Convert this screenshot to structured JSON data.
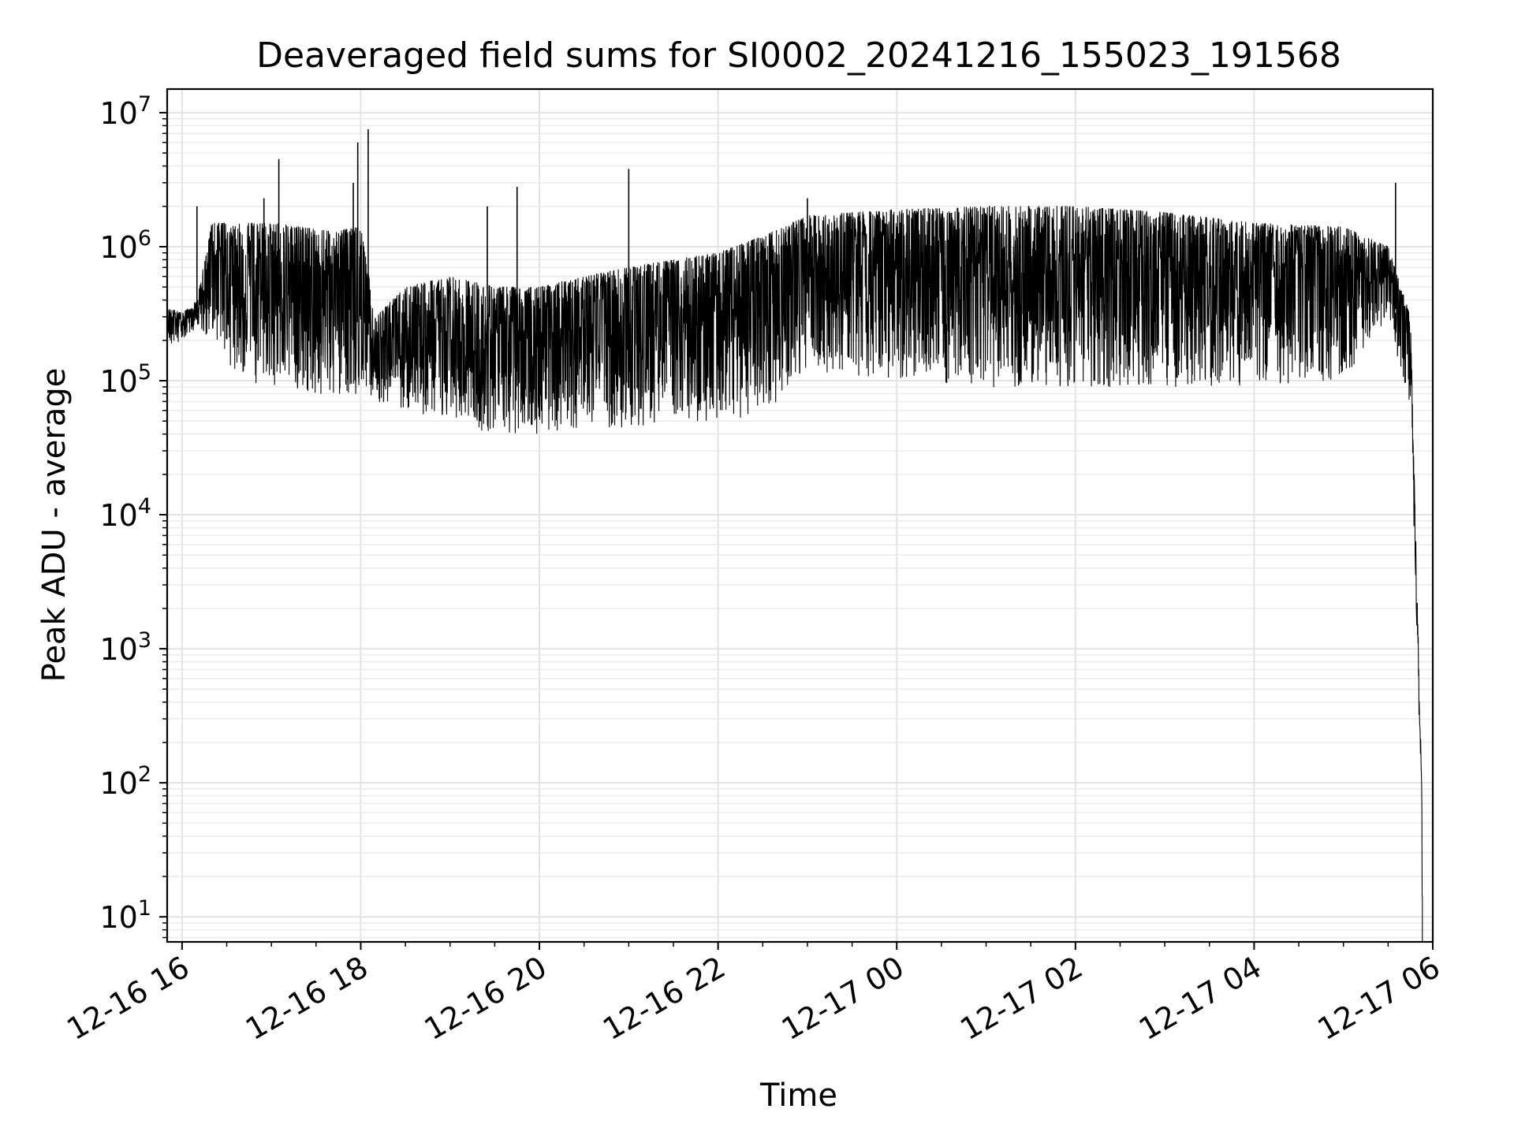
{
  "chart_data": {
    "type": "line",
    "title": "Deaveraged field sums for SI0002_20241216_155023_191568",
    "xlabel": "Time",
    "ylabel": "Peak ADU - average",
    "y_scale": "log",
    "ylim": [
      6.5,
      15000000
    ],
    "xlim": [
      "2024-12-16 15:50",
      "2024-12-17 06:00"
    ],
    "grid": true,
    "line_color": "#000000",
    "x_ticks": [
      "12-16 16",
      "12-16 18",
      "12-16 20",
      "12-16 22",
      "12-17 00",
      "12-17 02",
      "12-17 04",
      "12-17 06"
    ],
    "y_ticks": [
      {
        "base": "10",
        "exp": "1"
      },
      {
        "base": "10",
        "exp": "2"
      },
      {
        "base": "10",
        "exp": "3"
      },
      {
        "base": "10",
        "exp": "4"
      },
      {
        "base": "10",
        "exp": "5"
      },
      {
        "base": "10",
        "exp": "6"
      },
      {
        "base": "10",
        "exp": "7"
      }
    ],
    "series": [
      {
        "envelope": [
          {
            "x": "2024-12-16 15:50",
            "low": 180000,
            "high": 350000
          },
          {
            "x": "2024-12-16 16:00",
            "low": 200000,
            "high": 320000
          },
          {
            "x": "2024-12-16 16:10",
            "low": 250000,
            "high": 400000
          },
          {
            "x": "2024-12-16 16:20",
            "low": 200000,
            "high": 1500000
          },
          {
            "x": "2024-12-16 16:40",
            "low": 100000,
            "high": 1500000
          },
          {
            "x": "2024-12-16 17:00",
            "low": 90000,
            "high": 1500000
          },
          {
            "x": "2024-12-16 17:20",
            "low": 80000,
            "high": 1400000
          },
          {
            "x": "2024-12-16 17:40",
            "low": 80000,
            "high": 1300000
          },
          {
            "x": "2024-12-16 18:00",
            "low": 80000,
            "high": 1400000
          },
          {
            "x": "2024-12-16 18:10",
            "low": 70000,
            "high": 300000
          },
          {
            "x": "2024-12-16 18:30",
            "low": 60000,
            "high": 500000
          },
          {
            "x": "2024-12-16 19:00",
            "low": 50000,
            "high": 600000
          },
          {
            "x": "2024-12-16 19:30",
            "low": 40000,
            "high": 500000
          },
          {
            "x": "2024-12-16 20:00",
            "low": 40000,
            "high": 500000
          },
          {
            "x": "2024-12-16 20:30",
            "low": 45000,
            "high": 600000
          },
          {
            "x": "2024-12-16 21:00",
            "low": 45000,
            "high": 700000
          },
          {
            "x": "2024-12-16 21:30",
            "low": 50000,
            "high": 800000
          },
          {
            "x": "2024-12-16 22:00",
            "low": 50000,
            "high": 900000
          },
          {
            "x": "2024-12-16 22:30",
            "low": 55000,
            "high": 1200000
          },
          {
            "x": "2024-12-16 23:00",
            "low": 120000,
            "high": 1700000
          },
          {
            "x": "2024-12-17 00:00",
            "low": 100000,
            "high": 1900000
          },
          {
            "x": "2024-12-17 01:00",
            "low": 90000,
            "high": 2000000
          },
          {
            "x": "2024-12-17 02:00",
            "low": 90000,
            "high": 2000000
          },
          {
            "x": "2024-12-17 03:00",
            "low": 90000,
            "high": 1800000
          },
          {
            "x": "2024-12-17 04:00",
            "low": 90000,
            "high": 1500000
          },
          {
            "x": "2024-12-17 05:00",
            "low": 100000,
            "high": 1400000
          },
          {
            "x": "2024-12-17 05:30",
            "low": 300000,
            "high": 1000000
          },
          {
            "x": "2024-12-17 05:45",
            "low": 60000,
            "high": 300000
          },
          {
            "x": "2024-12-17 05:52",
            "low": 100,
            "high": 200
          },
          {
            "x": "2024-12-17 05:53",
            "low": 6.5,
            "high": 50
          }
        ],
        "spikes": [
          {
            "x": "2024-12-16 16:10",
            "y": 2000000
          },
          {
            "x": "2024-12-16 16:55",
            "y": 2300000
          },
          {
            "x": "2024-12-16 17:05",
            "y": 4500000
          },
          {
            "x": "2024-12-16 17:55",
            "y": 3000000
          },
          {
            "x": "2024-12-16 17:58",
            "y": 6000000
          },
          {
            "x": "2024-12-16 18:05",
            "y": 7500000
          },
          {
            "x": "2024-12-16 19:25",
            "y": 2000000
          },
          {
            "x": "2024-12-16 19:45",
            "y": 2800000
          },
          {
            "x": "2024-12-16 21:00",
            "y": 3800000
          },
          {
            "x": "2024-12-16 23:00",
            "y": 2300000
          },
          {
            "x": "2024-12-17 05:35",
            "y": 3000000
          }
        ]
      }
    ]
  }
}
